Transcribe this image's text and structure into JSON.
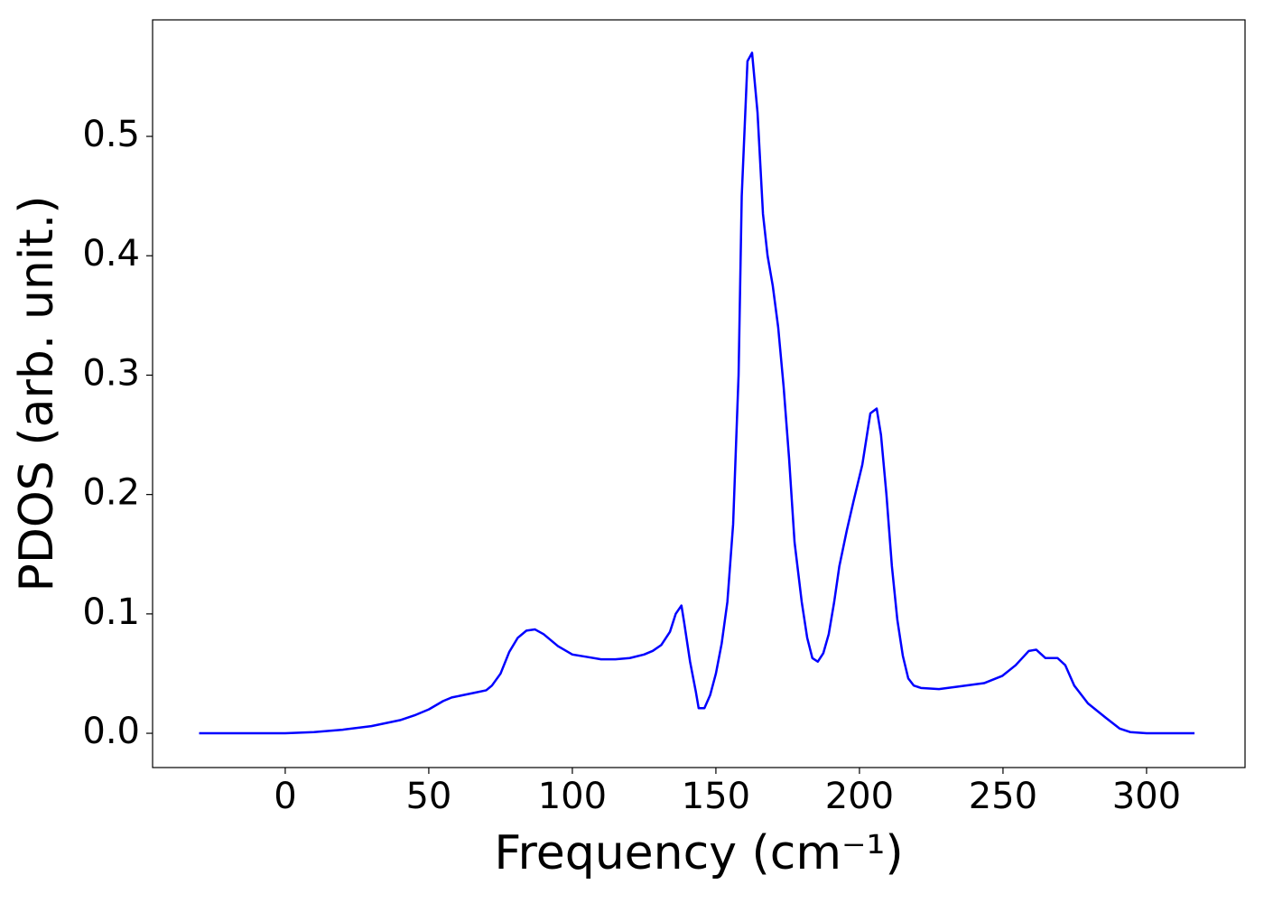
{
  "chart_data": {
    "type": "line",
    "x_label": "Frequency (cm⁻¹)",
    "y_label": "PDOS (arb. unit.)",
    "x": [
      -30,
      -20,
      -10,
      0,
      10,
      20,
      30,
      40,
      45,
      50,
      55,
      58,
      62,
      66,
      70,
      72,
      75,
      78,
      81,
      84,
      87,
      90,
      95,
      100,
      105,
      110,
      115,
      120,
      125,
      128,
      131,
      134,
      136,
      138,
      139,
      141,
      143,
      144,
      146,
      148,
      150,
      152,
      154,
      156,
      157.9,
      159,
      161,
      162.6,
      164.5,
      166.4,
      168,
      169.8,
      171.7,
      173.6,
      175.5,
      177.4,
      179.9,
      181.8,
      183.6,
      185.5,
      187.4,
      189.3,
      191.2,
      193,
      195.6,
      198,
      201,
      203.8,
      206,
      207.5,
      209.4,
      211.3,
      213.2,
      215.1,
      217,
      218.9,
      221.4,
      227.7,
      234,
      243.4,
      249.7,
      254.4,
      259,
      261.6,
      264.8,
      269,
      271.7,
      274.8,
      279.6,
      285.8,
      290.6,
      294.3,
      300,
      316.7
    ],
    "series": [
      {
        "color": "#0000ff",
        "values": [
          0,
          0,
          0,
          0,
          0.001,
          0.003,
          0.006,
          0.011,
          0.015,
          0.02,
          0.027,
          0.03,
          0.032,
          0.034,
          0.036,
          0.04,
          0.05,
          0.068,
          0.08,
          0.086,
          0.087,
          0.083,
          0.073,
          0.066,
          0.064,
          0.062,
          0.062,
          0.063,
          0.066,
          0.069,
          0.074,
          0.085,
          0.1,
          0.107,
          0.092,
          0.06,
          0.035,
          0.021,
          0.021,
          0.032,
          0.05,
          0.075,
          0.11,
          0.175,
          0.3,
          0.45,
          0.563,
          0.57,
          0.52,
          0.435,
          0.4,
          0.375,
          0.34,
          0.29,
          0.23,
          0.16,
          0.11,
          0.08,
          0.063,
          0.06,
          0.067,
          0.083,
          0.11,
          0.14,
          0.17,
          0.195,
          0.225,
          0.268,
          0.272,
          0.25,
          0.2,
          0.14,
          0.095,
          0.065,
          0.046,
          0.04,
          0.038,
          0.037,
          0.039,
          0.042,
          0.048,
          0.057,
          0.069,
          0.07,
          0.063,
          0.063,
          0.057,
          0.04,
          0.025,
          0.013,
          0.004,
          0.001,
          0,
          0
        ]
      }
    ],
    "xlim": [
      -46.2,
      334.3
    ],
    "ylim": [
      -0.0287,
      0.5976
    ],
    "xticks": [
      0,
      50,
      100,
      150,
      200,
      250,
      300
    ],
    "yticks": [
      {
        "value": 0,
        "label": "0.0"
      },
      0.1,
      0.2,
      0.3,
      0.4,
      0.5
    ],
    "grid": false
  }
}
